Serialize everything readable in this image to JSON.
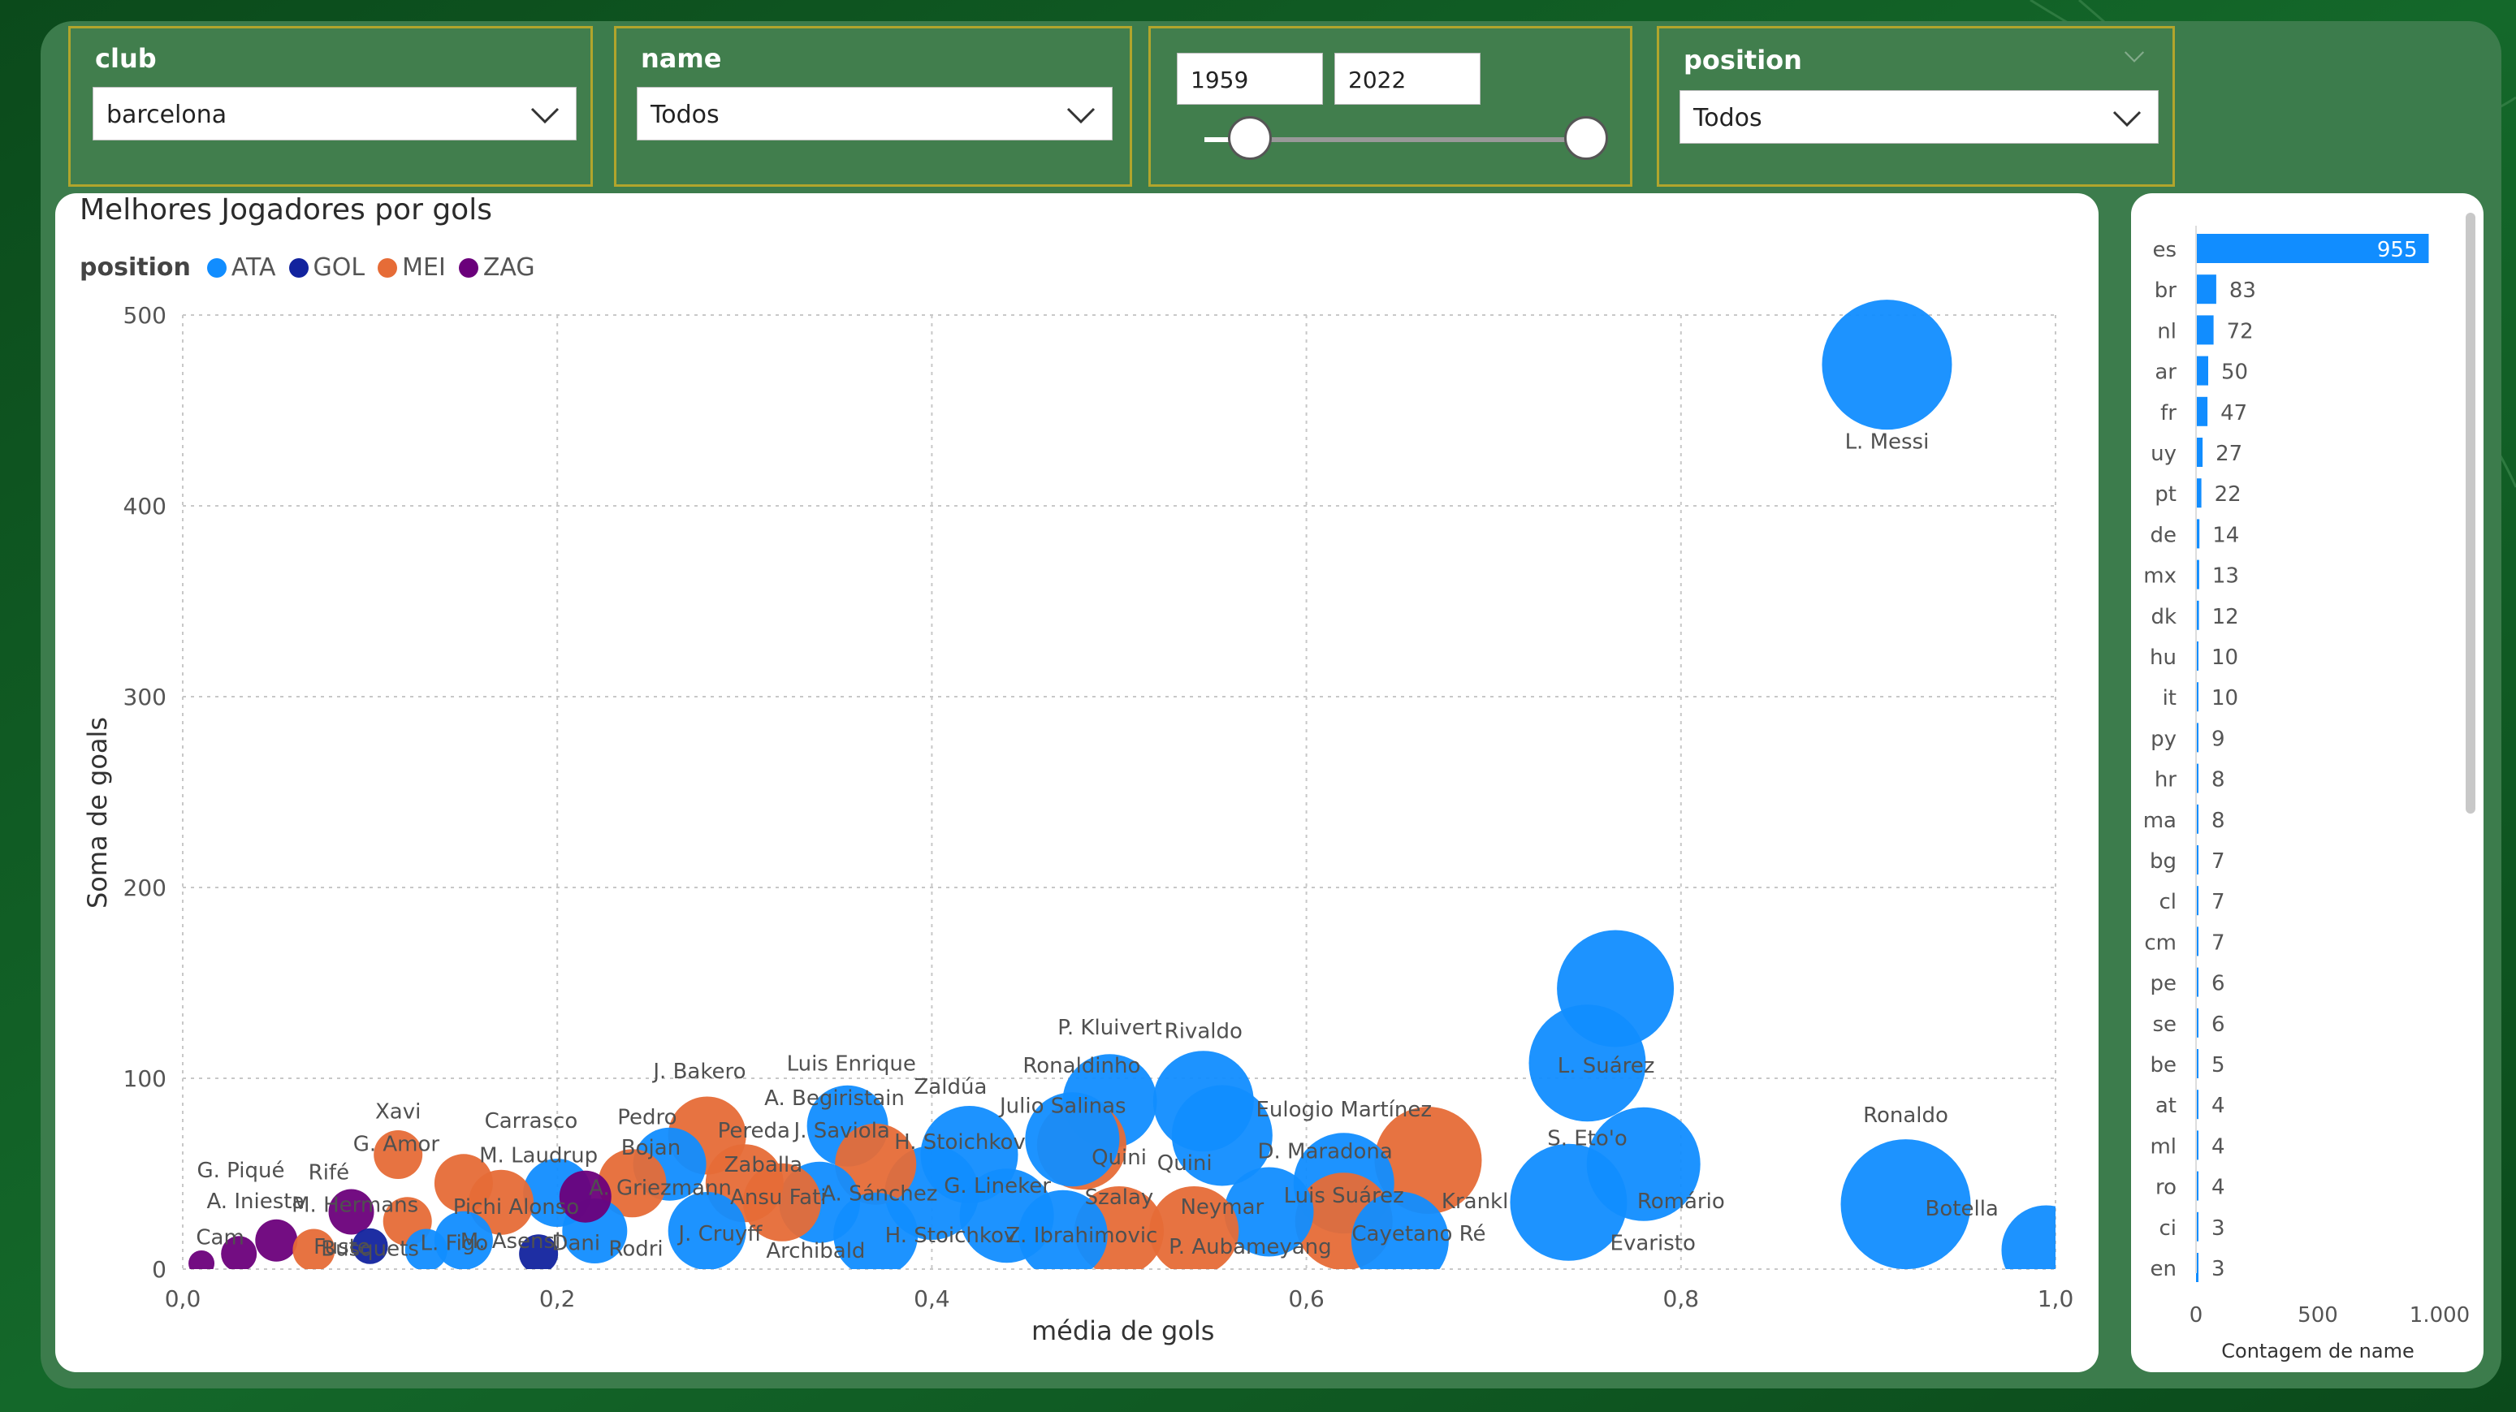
{
  "colors": {
    "ATA": "#118dff",
    "GOL": "#12239e",
    "MEI": "#e66c37",
    "ZAG": "#6b007b",
    "bar": "#118dff",
    "accent": "#b1a52c"
  },
  "filters": {
    "club": {
      "title": "club",
      "value": "barcelona"
    },
    "name": {
      "title": "name",
      "value": "Todos"
    },
    "years": {
      "start": "1959",
      "end": "2022",
      "slider_low": 0.12,
      "slider_high": 1.0
    },
    "position": {
      "title": "position",
      "value": "Todos"
    }
  },
  "scatter": {
    "title": "Melhores Jogadores por gols",
    "legend_title": "position",
    "legend": [
      {
        "key": "ATA",
        "label": "ATA"
      },
      {
        "key": "GOL",
        "label": "GOL"
      },
      {
        "key": "MEI",
        "label": "MEI"
      },
      {
        "key": "ZAG",
        "label": "ZAG"
      }
    ],
    "xlabel": "média de gols",
    "ylabel": "Soma de goals",
    "x_ticks": [
      "0,0",
      "0,2",
      "0,4",
      "0,6",
      "0,8",
      "1,0"
    ],
    "y_ticks": [
      "0",
      "100",
      "200",
      "300",
      "400",
      "500"
    ]
  },
  "chart_data": [
    {
      "type": "scatter",
      "title": "Melhores Jogadores por gols",
      "xlabel": "média de gols",
      "ylabel": "Soma de goals",
      "xlim": [
        0,
        1.0
      ],
      "ylim": [
        0,
        500
      ],
      "grid": true,
      "legend_position": "top-left",
      "points": [
        {
          "label": "L. Messi",
          "pos": "ATA",
          "x": 0.91,
          "y": 474,
          "r": 80
        },
        {
          "label": "",
          "pos": "ATA",
          "x": 0.765,
          "y": 147,
          "r": 72
        },
        {
          "label": "L. Suárez",
          "pos": "ATA",
          "x": 0.75,
          "y": 108,
          "r": 72
        },
        {
          "label": "",
          "pos": "ATA",
          "x": 0.78,
          "y": 55,
          "r": 70
        },
        {
          "label": "S. Eto'o",
          "pos": "ATA",
          "x": 0.74,
          "y": 35,
          "r": 72
        },
        {
          "label": "Ronaldo",
          "pos": "ATA",
          "x": 0.92,
          "y": 34,
          "r": 80
        },
        {
          "label": "",
          "pos": "ATA",
          "x": 0.995,
          "y": 10,
          "r": 55
        },
        {
          "label": "Rivaldo",
          "pos": "ATA",
          "x": 0.545,
          "y": 88,
          "r": 62
        },
        {
          "label": "",
          "pos": "ATA",
          "x": 0.555,
          "y": 70,
          "r": 62
        },
        {
          "label": "P. Kluivert",
          "pos": "ATA",
          "x": 0.495,
          "y": 88,
          "r": 58
        },
        {
          "label": "",
          "pos": "MEI",
          "x": 0.665,
          "y": 57,
          "r": 66
        },
        {
          "label": "",
          "pos": "ATA",
          "x": 0.62,
          "y": 45,
          "r": 62
        },
        {
          "label": "",
          "pos": "MEI",
          "x": 0.62,
          "y": 25,
          "r": 60
        },
        {
          "label": "",
          "pos": "ATA",
          "x": 0.65,
          "y": 15,
          "r": 60
        },
        {
          "label": "",
          "pos": "ATA",
          "x": 0.58,
          "y": 30,
          "r": 55
        },
        {
          "label": "",
          "pos": "MEI",
          "x": 0.5,
          "y": 20,
          "r": 55
        },
        {
          "label": "",
          "pos": "MEI",
          "x": 0.48,
          "y": 65,
          "r": 55
        },
        {
          "label": "",
          "pos": "ATA",
          "x": 0.475,
          "y": 68,
          "r": 58
        },
        {
          "label": "",
          "pos": "ATA",
          "x": 0.42,
          "y": 60,
          "r": 60
        },
        {
          "label": "",
          "pos": "ATA",
          "x": 0.4,
          "y": 40,
          "r": 58
        },
        {
          "label": "",
          "pos": "ATA",
          "x": 0.44,
          "y": 28,
          "r": 58
        },
        {
          "label": "",
          "pos": "ATA",
          "x": 0.47,
          "y": 18,
          "r": 55
        },
        {
          "label": "",
          "pos": "MEI",
          "x": 0.54,
          "y": 20,
          "r": 55
        },
        {
          "label": "",
          "pos": "ATA",
          "x": 0.355,
          "y": 75,
          "r": 50
        },
        {
          "label": "",
          "pos": "MEI",
          "x": 0.37,
          "y": 55,
          "r": 50
        },
        {
          "label": "",
          "pos": "ATA",
          "x": 0.34,
          "y": 35,
          "r": 50
        },
        {
          "label": "",
          "pos": "ATA",
          "x": 0.37,
          "y": 18,
          "r": 52
        },
        {
          "label": "",
          "pos": "MEI",
          "x": 0.28,
          "y": 70,
          "r": 48
        },
        {
          "label": "",
          "pos": "MEI",
          "x": 0.3,
          "y": 45,
          "r": 48
        },
        {
          "label": "",
          "pos": "ATA",
          "x": 0.26,
          "y": 55,
          "r": 45
        },
        {
          "label": "",
          "pos": "MEI",
          "x": 0.32,
          "y": 35,
          "r": 48
        },
        {
          "label": "",
          "pos": "ATA",
          "x": 0.28,
          "y": 20,
          "r": 48
        },
        {
          "label": "",
          "pos": "MEI",
          "x": 0.24,
          "y": 45,
          "r": 42
        },
        {
          "label": "",
          "pos": "ATA",
          "x": 0.2,
          "y": 40,
          "r": 42
        },
        {
          "label": "",
          "pos": "MEI",
          "x": 0.17,
          "y": 35,
          "r": 40
        },
        {
          "label": "",
          "pos": "ATA",
          "x": 0.22,
          "y": 20,
          "r": 40
        },
        {
          "label": "",
          "pos": "MEI",
          "x": 0.15,
          "y": 45,
          "r": 36
        },
        {
          "label": "",
          "pos": "ATA",
          "x": 0.15,
          "y": 15,
          "r": 36
        },
        {
          "label": "",
          "pos": "ZAG",
          "x": 0.215,
          "y": 38,
          "r": 32
        },
        {
          "label": "",
          "pos": "MEI",
          "x": 0.115,
          "y": 60,
          "r": 30
        },
        {
          "label": "",
          "pos": "MEI",
          "x": 0.12,
          "y": 25,
          "r": 30
        },
        {
          "label": "",
          "pos": "ZAG",
          "x": 0.09,
          "y": 30,
          "r": 28
        },
        {
          "label": "",
          "pos": "ZAG",
          "x": 0.05,
          "y": 15,
          "r": 26
        },
        {
          "label": "",
          "pos": "MEI",
          "x": 0.07,
          "y": 10,
          "r": 26
        },
        {
          "label": "",
          "pos": "ZAG",
          "x": 0.03,
          "y": 8,
          "r": 22
        },
        {
          "label": "",
          "pos": "ZAG",
          "x": 0.01,
          "y": 3,
          "r": 16
        },
        {
          "label": "",
          "pos": "GOL",
          "x": 0.1,
          "y": 12,
          "r": 22
        },
        {
          "label": "",
          "pos": "ATA",
          "x": 0.13,
          "y": 10,
          "r": 26
        },
        {
          "label": "",
          "pos": "GOL",
          "x": 0.19,
          "y": 8,
          "r": 24
        }
      ],
      "text_labels": [
        {
          "text": "L. Messi",
          "x": 0.91,
          "y": 430
        },
        {
          "text": "Ronaldo",
          "x": 0.92,
          "y": 77
        },
        {
          "text": "Botella",
          "x": 0.95,
          "y": 28
        },
        {
          "text": "L. Suárez",
          "x": 0.76,
          "y": 103
        },
        {
          "text": "S. Eto'o",
          "x": 0.75,
          "y": 65
        },
        {
          "text": "Romário",
          "x": 0.8,
          "y": 32
        },
        {
          "text": "Evaristo",
          "x": 0.785,
          "y": 10
        },
        {
          "text": "Krankl",
          "x": 0.69,
          "y": 32
        },
        {
          "text": "Cayetano Ré",
          "x": 0.66,
          "y": 15
        },
        {
          "text": "Eulogio Martínez",
          "x": 0.62,
          "y": 80
        },
        {
          "text": "D. Maradona",
          "x": 0.61,
          "y": 58
        },
        {
          "text": "Luis Suárez",
          "x": 0.62,
          "y": 35
        },
        {
          "text": "Neymar",
          "x": 0.555,
          "y": 29
        },
        {
          "text": "P. Aubameyang",
          "x": 0.57,
          "y": 8
        },
        {
          "text": "P. Kluivert",
          "x": 0.495,
          "y": 123
        },
        {
          "text": "Rivaldo",
          "x": 0.545,
          "y": 121
        },
        {
          "text": "Ronaldinho",
          "x": 0.48,
          "y": 103
        },
        {
          "text": "Julio Salinas",
          "x": 0.47,
          "y": 82
        },
        {
          "text": "Quini",
          "x": 0.5,
          "y": 55
        },
        {
          "text": "Quini",
          "x": 0.535,
          "y": 52
        },
        {
          "text": "Szalay",
          "x": 0.5,
          "y": 34
        },
        {
          "text": "Z. Ibrahimovic",
          "x": 0.48,
          "y": 14
        },
        {
          "text": "H. Stoichkov",
          "x": 0.41,
          "y": 14
        },
        {
          "text": "G. Lineker",
          "x": 0.435,
          "y": 40
        },
        {
          "text": "H. Stoichkov",
          "x": 0.415,
          "y": 63
        },
        {
          "text": "Zaldúa",
          "x": 0.41,
          "y": 92
        },
        {
          "text": "Luis Enrique",
          "x": 0.357,
          "y": 104
        },
        {
          "text": "A. Begiristain",
          "x": 0.348,
          "y": 86
        },
        {
          "text": "J. Saviola",
          "x": 0.352,
          "y": 69
        },
        {
          "text": "A. Sánchez",
          "x": 0.372,
          "y": 36
        },
        {
          "text": "Ansu Fati",
          "x": 0.318,
          "y": 34
        },
        {
          "text": "Archibald",
          "x": 0.338,
          "y": 6
        },
        {
          "text": "J. Bakero",
          "x": 0.276,
          "y": 100
        },
        {
          "text": "Pereda",
          "x": 0.305,
          "y": 69
        },
        {
          "text": "Zaballa",
          "x": 0.31,
          "y": 51
        },
        {
          "text": "A. Griezmann",
          "x": 0.255,
          "y": 39
        },
        {
          "text": "J. Cruyff",
          "x": 0.287,
          "y": 15
        },
        {
          "text": "Pedro",
          "x": 0.248,
          "y": 76
        },
        {
          "text": "Bojan",
          "x": 0.25,
          "y": 60
        },
        {
          "text": "Carrasco",
          "x": 0.186,
          "y": 74
        },
        {
          "text": "M. Laudrup",
          "x": 0.19,
          "y": 56
        },
        {
          "text": "Pichi Alonso",
          "x": 0.178,
          "y": 29
        },
        {
          "text": "M. Asensi",
          "x": 0.175,
          "y": 11
        },
        {
          "text": "Dani",
          "x": 0.21,
          "y": 10
        },
        {
          "text": "Rodri",
          "x": 0.242,
          "y": 7
        },
        {
          "text": "Xavi",
          "x": 0.115,
          "y": 79
        },
        {
          "text": "G. Amor",
          "x": 0.114,
          "y": 62
        },
        {
          "text": "Rifé",
          "x": 0.078,
          "y": 47
        },
        {
          "text": "G. Piqué",
          "x": 0.031,
          "y": 48
        },
        {
          "text": "A. Iniesta",
          "x": 0.039,
          "y": 32
        },
        {
          "text": "M. Hermans",
          "x": 0.092,
          "y": 30
        },
        {
          "text": "L. Figo",
          "x": 0.145,
          "y": 10
        },
        {
          "text": "Fuste",
          "x": 0.085,
          "y": 8
        },
        {
          "text": "Busquets",
          "x": 0.1,
          "y": 7
        },
        {
          "text": "Cam",
          "x": 0.02,
          "y": 13
        }
      ]
    },
    {
      "type": "bar",
      "orientation": "horizontal",
      "xlabel": "Contagem de name",
      "x_ticks": [
        "0",
        "500",
        "1.000"
      ],
      "xlim": [
        0,
        1000
      ],
      "categories": [
        "es",
        "br",
        "nl",
        "ar",
        "fr",
        "uy",
        "pt",
        "de",
        "mx",
        "dk",
        "hu",
        "it",
        "py",
        "hr",
        "ma",
        "bg",
        "cl",
        "cm",
        "pe",
        "se",
        "be",
        "at",
        "ml",
        "ro",
        "ci",
        "en"
      ],
      "values": [
        955,
        83,
        72,
        50,
        47,
        27,
        22,
        14,
        13,
        12,
        10,
        10,
        9,
        8,
        8,
        7,
        7,
        7,
        6,
        6,
        5,
        4,
        4,
        4,
        3,
        3
      ]
    }
  ]
}
